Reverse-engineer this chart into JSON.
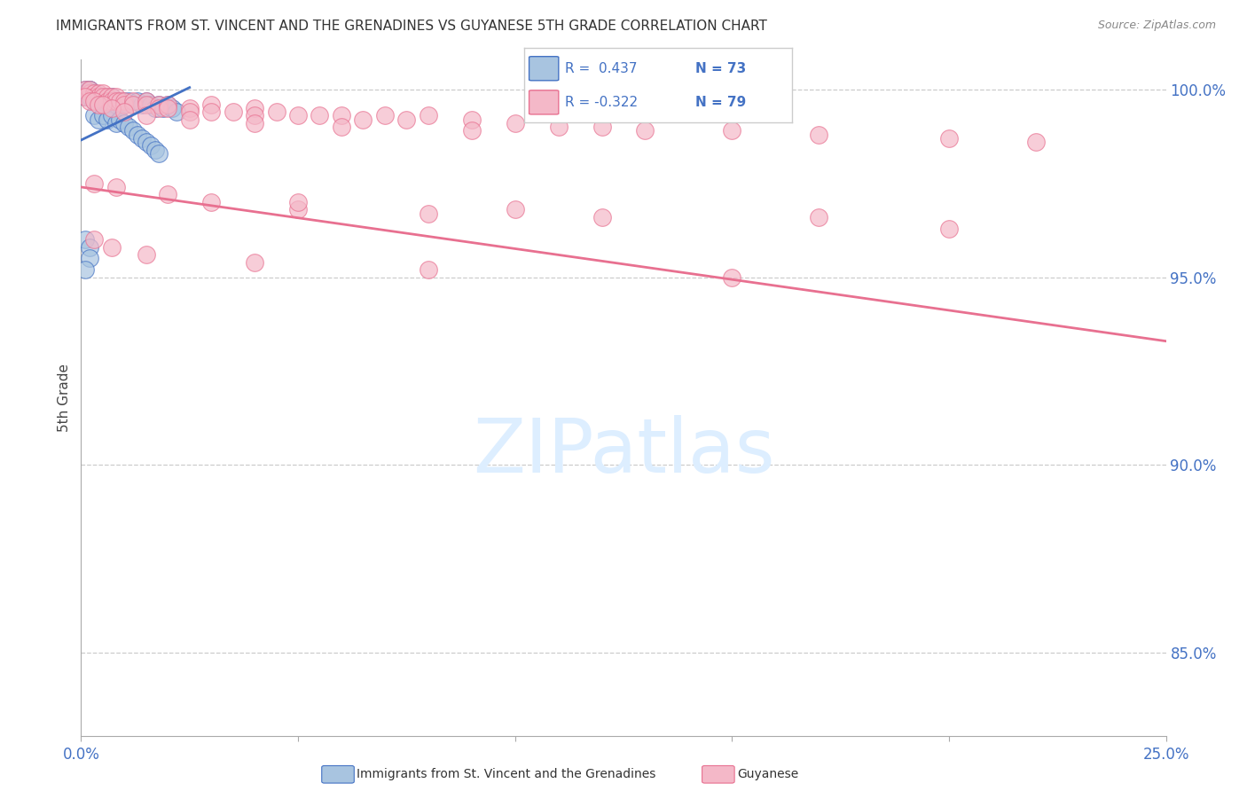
{
  "title": "IMMIGRANTS FROM ST. VINCENT AND THE GRENADINES VS GUYANESE 5TH GRADE CORRELATION CHART",
  "source": "Source: ZipAtlas.com",
  "ylabel": "5th Grade",
  "ytick_vals": [
    0.85,
    0.9,
    0.95,
    1.0
  ],
  "ytick_labels": [
    "85.0%",
    "90.0%",
    "95.0%",
    "100.0%"
  ],
  "xmin": 0.0,
  "xmax": 0.25,
  "ymin": 0.828,
  "ymax": 1.008,
  "blue_color": "#a8c4e0",
  "blue_edge_color": "#4472c4",
  "pink_color": "#f4b8c8",
  "pink_edge_color": "#e87090",
  "blue_line_color": "#4472c4",
  "pink_line_color": "#e87090",
  "watermark_text": "ZIPatlas",
  "watermark_color": "#ddeeff",
  "legend_r_blue": "R =  0.437",
  "legend_n_blue": "N = 73",
  "legend_r_pink": "R = -0.322",
  "legend_n_pink": "N = 79",
  "blue_line_x": [
    0.0,
    0.025
  ],
  "blue_line_y": [
    0.9865,
    1.0005
  ],
  "pink_line_x": [
    0.0,
    0.25
  ],
  "pink_line_y": [
    0.974,
    0.933
  ],
  "blue_x": [
    0.001,
    0.001,
    0.001,
    0.001,
    0.001,
    0.002,
    0.002,
    0.002,
    0.002,
    0.002,
    0.002,
    0.002,
    0.002,
    0.003,
    0.003,
    0.003,
    0.003,
    0.003,
    0.003,
    0.003,
    0.004,
    0.004,
    0.004,
    0.004,
    0.004,
    0.005,
    0.005,
    0.005,
    0.005,
    0.006,
    0.006,
    0.006,
    0.007,
    0.007,
    0.007,
    0.008,
    0.008,
    0.009,
    0.009,
    0.01,
    0.01,
    0.011,
    0.012,
    0.013,
    0.014,
    0.015,
    0.016,
    0.017,
    0.018,
    0.019,
    0.02,
    0.021,
    0.022,
    0.003,
    0.004,
    0.005,
    0.006,
    0.007,
    0.008,
    0.009,
    0.01,
    0.011,
    0.012,
    0.013,
    0.014,
    0.015,
    0.016,
    0.017,
    0.018,
    0.001,
    0.002,
    0.002,
    0.001
  ],
  "blue_y": [
    0.999,
    0.998,
    1.0,
    0.999,
    0.998,
    0.999,
    1.0,
    0.999,
    0.998,
    0.999,
    1.0,
    0.999,
    0.998,
    0.999,
    0.998,
    0.999,
    0.998,
    0.997,
    0.998,
    0.999,
    0.998,
    0.997,
    0.998,
    0.997,
    0.998,
    0.997,
    0.998,
    0.997,
    0.996,
    0.998,
    0.997,
    0.996,
    0.997,
    0.998,
    0.996,
    0.997,
    0.996,
    0.997,
    0.996,
    0.997,
    0.996,
    0.997,
    0.996,
    0.997,
    0.996,
    0.997,
    0.996,
    0.995,
    0.996,
    0.995,
    0.996,
    0.995,
    0.994,
    0.993,
    0.992,
    0.993,
    0.992,
    0.993,
    0.991,
    0.992,
    0.991,
    0.99,
    0.989,
    0.988,
    0.987,
    0.986,
    0.985,
    0.984,
    0.983,
    0.96,
    0.958,
    0.955,
    0.952
  ],
  "pink_x": [
    0.001,
    0.002,
    0.002,
    0.003,
    0.003,
    0.004,
    0.004,
    0.005,
    0.005,
    0.006,
    0.006,
    0.007,
    0.007,
    0.008,
    0.008,
    0.009,
    0.01,
    0.01,
    0.012,
    0.012,
    0.015,
    0.015,
    0.018,
    0.018,
    0.02,
    0.02,
    0.025,
    0.025,
    0.03,
    0.03,
    0.035,
    0.04,
    0.04,
    0.045,
    0.05,
    0.055,
    0.06,
    0.065,
    0.07,
    0.075,
    0.08,
    0.09,
    0.1,
    0.11,
    0.12,
    0.13,
    0.15,
    0.17,
    0.2,
    0.22,
    0.001,
    0.002,
    0.003,
    0.004,
    0.005,
    0.007,
    0.01,
    0.015,
    0.025,
    0.04,
    0.06,
    0.09,
    0.03,
    0.05,
    0.08,
    0.12,
    0.2,
    0.003,
    0.008,
    0.02,
    0.05,
    0.1,
    0.17,
    0.003,
    0.007,
    0.015,
    0.04,
    0.08,
    0.15
  ],
  "pink_y": [
    1.0,
    0.999,
    1.0,
    0.999,
    0.998,
    0.999,
    0.998,
    0.999,
    0.998,
    0.998,
    0.997,
    0.998,
    0.997,
    0.998,
    0.997,
    0.997,
    0.997,
    0.996,
    0.997,
    0.996,
    0.997,
    0.996,
    0.996,
    0.995,
    0.996,
    0.995,
    0.995,
    0.994,
    0.996,
    0.994,
    0.994,
    0.995,
    0.993,
    0.994,
    0.993,
    0.993,
    0.993,
    0.992,
    0.993,
    0.992,
    0.993,
    0.992,
    0.991,
    0.99,
    0.99,
    0.989,
    0.989,
    0.988,
    0.987,
    0.986,
    0.998,
    0.997,
    0.997,
    0.996,
    0.996,
    0.995,
    0.994,
    0.993,
    0.992,
    0.991,
    0.99,
    0.989,
    0.97,
    0.968,
    0.967,
    0.966,
    0.963,
    0.975,
    0.974,
    0.972,
    0.97,
    0.968,
    0.966,
    0.96,
    0.958,
    0.956,
    0.954,
    0.952,
    0.95
  ]
}
